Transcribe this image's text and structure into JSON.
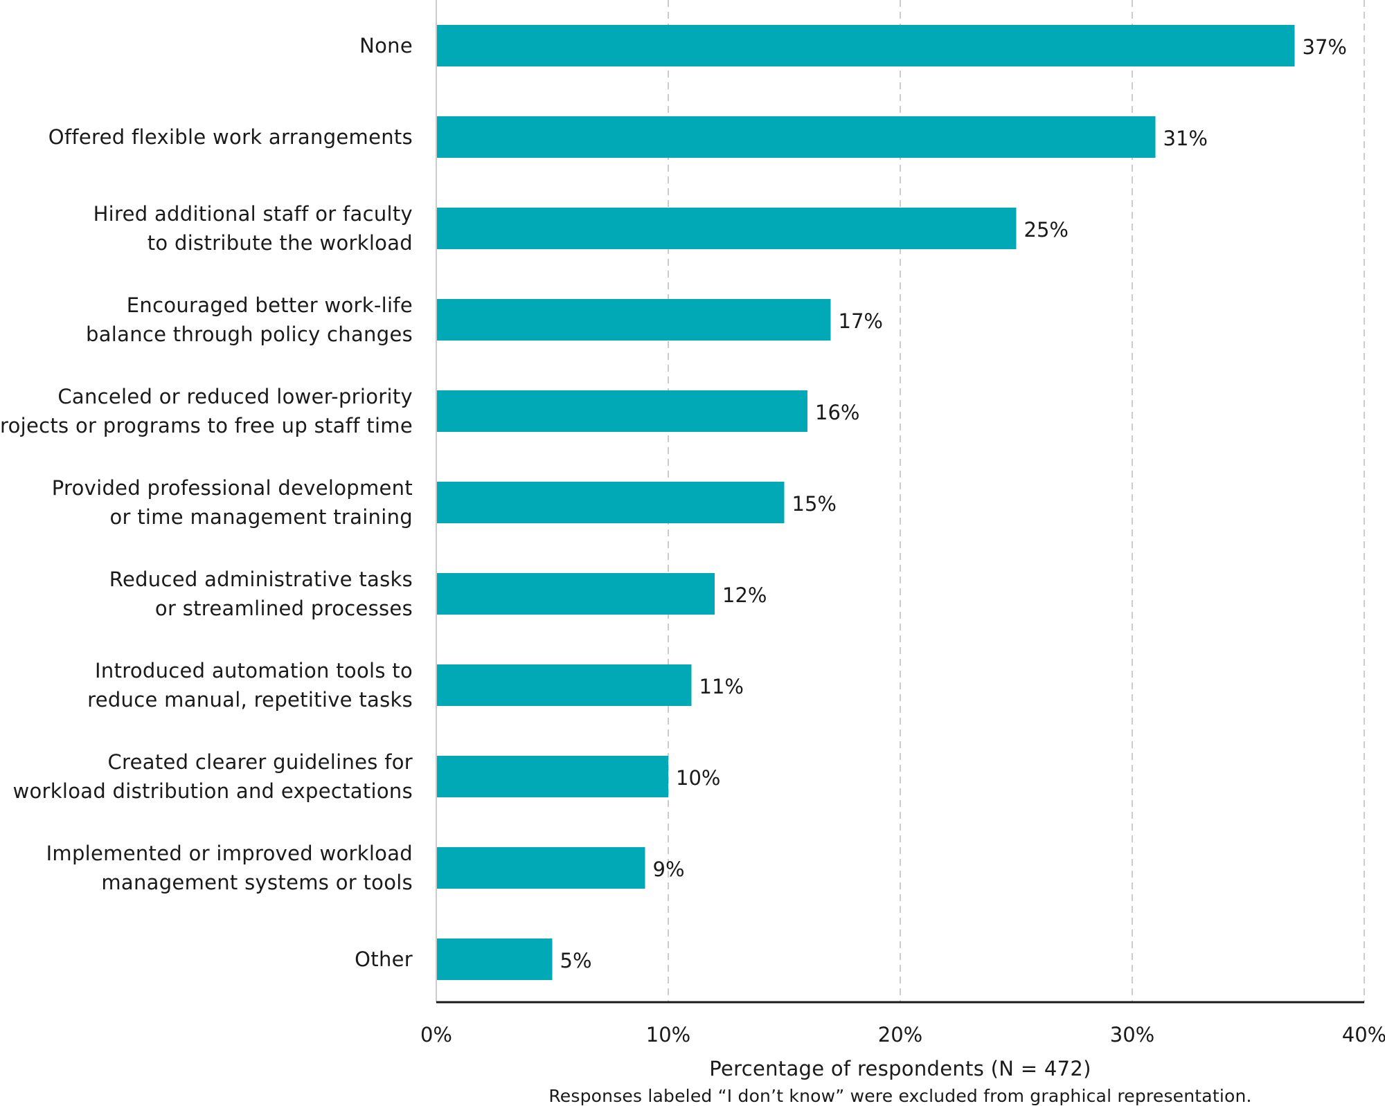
{
  "chart_data": {
    "type": "bar",
    "orientation": "horizontal",
    "categories": [
      [
        "None"
      ],
      [
        "Offered flexible work arrangements"
      ],
      [
        "Hired additional staff or faculty",
        "to distribute the workload"
      ],
      [
        "Encouraged better work-life",
        "balance through policy changes"
      ],
      [
        "Canceled or reduced lower-priority",
        "projects or programs to free up staff time"
      ],
      [
        "Provided professional development",
        "or time management training"
      ],
      [
        "Reduced administrative tasks",
        "or streamlined processes"
      ],
      [
        "Introduced automation tools to",
        "reduce manual, repetitive tasks"
      ],
      [
        "Created clearer guidelines for",
        "workload distribution and expectations"
      ],
      [
        "Implemented or improved workload",
        "management systems or tools"
      ],
      [
        "Other"
      ]
    ],
    "values": [
      37,
      31,
      25,
      17,
      16,
      15,
      12,
      11,
      10,
      9,
      5
    ],
    "value_labels": [
      "37%",
      "31%",
      "25%",
      "17%",
      "16%",
      "15%",
      "12%",
      "11%",
      "10%",
      "9%",
      "5%"
    ],
    "xlim": [
      0,
      40
    ],
    "xticks": [
      0,
      10,
      20,
      30,
      40
    ],
    "xtick_labels": [
      "0%",
      "10%",
      "20%",
      "30%",
      "40%"
    ],
    "xlabel": "Percentage of respondents (N = 472)",
    "footnote": "Responses labeled “I don’t know” were excluded from graphical representation.",
    "grid": "vertical dashed",
    "bar_color": "#00a9b5",
    "grid_color": "#cccccc",
    "axis_color": "#1a1a1a"
  }
}
